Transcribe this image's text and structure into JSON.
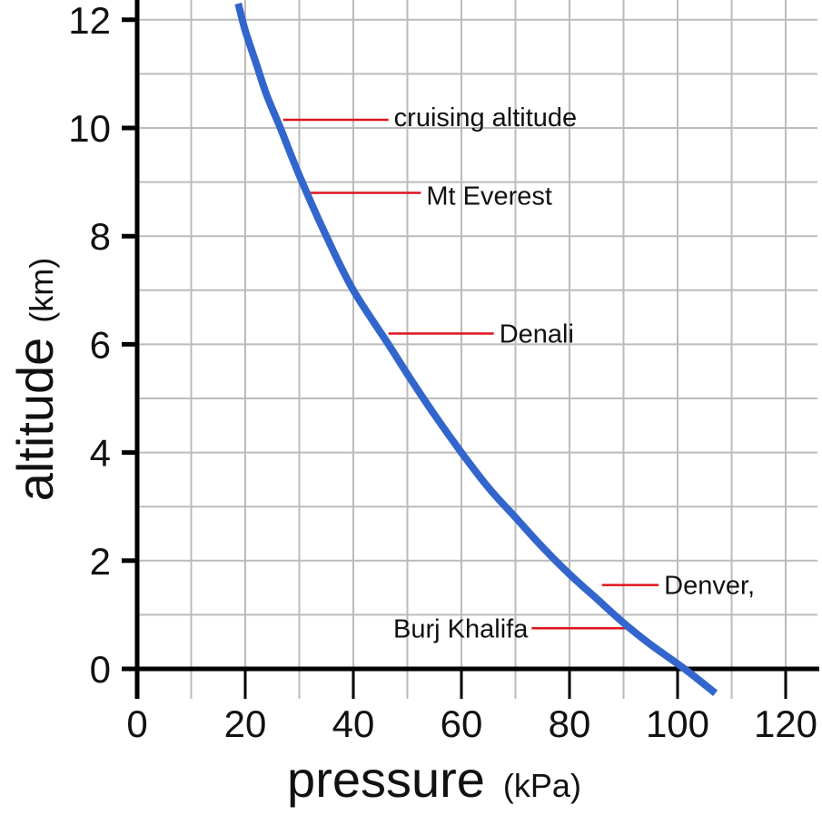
{
  "chart_data": {
    "type": "line",
    "title": "",
    "xlabel": "pressure",
    "xlabel_unit": "(kPa)",
    "ylabel": "altitude",
    "ylabel_unit": "(km)",
    "xlim": [
      0,
      125
    ],
    "ylim": [
      -0.5,
      12.3
    ],
    "x_ticks": [
      0,
      20,
      40,
      60,
      80,
      100,
      120
    ],
    "x_tick_labels": [
      "0",
      "20",
      "40",
      "60",
      "80",
      "100",
      "120"
    ],
    "y_ticks": [
      0,
      2,
      4,
      6,
      8,
      10,
      12
    ],
    "y_tick_labels": [
      "0",
      "2",
      "4",
      "6",
      "8",
      "10",
      "12"
    ],
    "grid": true,
    "grid_minor_step": {
      "x": 10,
      "y": 1
    },
    "series": [
      {
        "color": "#3366cc",
        "x": [
          18.7,
          20,
          22,
          24,
          26.5,
          30.1,
          35,
          40,
          46.5,
          50,
          55,
          60,
          65,
          70,
          75,
          80,
          85,
          90,
          95,
          101.3,
          107
        ],
        "y": [
          12.3,
          11.8,
          11.2,
          10.6,
          10.0,
          9.1,
          8.0,
          7.0,
          6.0,
          5.45,
          4.7,
          4.0,
          3.35,
          2.8,
          2.25,
          1.75,
          1.3,
          0.85,
          0.45,
          0.0,
          -0.45
        ]
      }
    ],
    "annotations": [
      {
        "label": "cruising altitude",
        "altitude": 10.15,
        "x_start": 27,
        "x_end": 46.5,
        "label_side": "right",
        "label_altitude": 10.2
      },
      {
        "label": "Mt Everest",
        "altitude": 8.8,
        "x_start": 32,
        "x_end": 52.5,
        "label_side": "right",
        "label_altitude": 8.75
      },
      {
        "label": "Denali",
        "altitude": 6.2,
        "x_start": 46.5,
        "x_end": 66,
        "label_side": "right",
        "label_altitude": 6.2
      },
      {
        "label": "Denver,",
        "altitude": 1.55,
        "x_start": 86,
        "x_end": 96.5,
        "label_side": "right",
        "label_altitude": 1.55
      },
      {
        "label": "Burj Khalifa",
        "altitude": 0.75,
        "x_start": 73,
        "x_end": 92,
        "label_side": "left",
        "label_altitude": 0.75
      }
    ],
    "colors": {
      "curve": "#3366cc",
      "annotation_line": "#e0141e",
      "grid": "#bbbbbb",
      "axis": "#000000",
      "text": "#111111"
    }
  }
}
